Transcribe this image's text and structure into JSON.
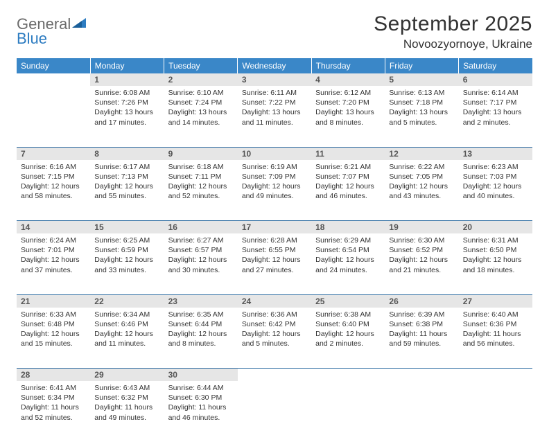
{
  "logo": {
    "word1": "General",
    "word2": "Blue"
  },
  "title": "September 2025",
  "location": "Novoozyornoye, Ukraine",
  "colors": {
    "header_bg": "#3a87c8",
    "header_text": "#ffffff",
    "daynum_bg": "#e6e6e6",
    "daynum_text": "#555555",
    "rule": "#2a6aa0",
    "logo_gray": "#6b6b6b",
    "logo_blue": "#2d7cc1",
    "body_text": "#333333"
  },
  "weekdays": [
    "Sunday",
    "Monday",
    "Tuesday",
    "Wednesday",
    "Thursday",
    "Friday",
    "Saturday"
  ],
  "weeks": [
    [
      null,
      {
        "n": "1",
        "sr": "Sunrise: 6:08 AM",
        "ss": "Sunset: 7:26 PM",
        "dl": "Daylight: 13 hours and 17 minutes."
      },
      {
        "n": "2",
        "sr": "Sunrise: 6:10 AM",
        "ss": "Sunset: 7:24 PM",
        "dl": "Daylight: 13 hours and 14 minutes."
      },
      {
        "n": "3",
        "sr": "Sunrise: 6:11 AM",
        "ss": "Sunset: 7:22 PM",
        "dl": "Daylight: 13 hours and 11 minutes."
      },
      {
        "n": "4",
        "sr": "Sunrise: 6:12 AM",
        "ss": "Sunset: 7:20 PM",
        "dl": "Daylight: 13 hours and 8 minutes."
      },
      {
        "n": "5",
        "sr": "Sunrise: 6:13 AM",
        "ss": "Sunset: 7:18 PM",
        "dl": "Daylight: 13 hours and 5 minutes."
      },
      {
        "n": "6",
        "sr": "Sunrise: 6:14 AM",
        "ss": "Sunset: 7:17 PM",
        "dl": "Daylight: 13 hours and 2 minutes."
      }
    ],
    [
      {
        "n": "7",
        "sr": "Sunrise: 6:16 AM",
        "ss": "Sunset: 7:15 PM",
        "dl": "Daylight: 12 hours and 58 minutes."
      },
      {
        "n": "8",
        "sr": "Sunrise: 6:17 AM",
        "ss": "Sunset: 7:13 PM",
        "dl": "Daylight: 12 hours and 55 minutes."
      },
      {
        "n": "9",
        "sr": "Sunrise: 6:18 AM",
        "ss": "Sunset: 7:11 PM",
        "dl": "Daylight: 12 hours and 52 minutes."
      },
      {
        "n": "10",
        "sr": "Sunrise: 6:19 AM",
        "ss": "Sunset: 7:09 PM",
        "dl": "Daylight: 12 hours and 49 minutes."
      },
      {
        "n": "11",
        "sr": "Sunrise: 6:21 AM",
        "ss": "Sunset: 7:07 PM",
        "dl": "Daylight: 12 hours and 46 minutes."
      },
      {
        "n": "12",
        "sr": "Sunrise: 6:22 AM",
        "ss": "Sunset: 7:05 PM",
        "dl": "Daylight: 12 hours and 43 minutes."
      },
      {
        "n": "13",
        "sr": "Sunrise: 6:23 AM",
        "ss": "Sunset: 7:03 PM",
        "dl": "Daylight: 12 hours and 40 minutes."
      }
    ],
    [
      {
        "n": "14",
        "sr": "Sunrise: 6:24 AM",
        "ss": "Sunset: 7:01 PM",
        "dl": "Daylight: 12 hours and 37 minutes."
      },
      {
        "n": "15",
        "sr": "Sunrise: 6:25 AM",
        "ss": "Sunset: 6:59 PM",
        "dl": "Daylight: 12 hours and 33 minutes."
      },
      {
        "n": "16",
        "sr": "Sunrise: 6:27 AM",
        "ss": "Sunset: 6:57 PM",
        "dl": "Daylight: 12 hours and 30 minutes."
      },
      {
        "n": "17",
        "sr": "Sunrise: 6:28 AM",
        "ss": "Sunset: 6:55 PM",
        "dl": "Daylight: 12 hours and 27 minutes."
      },
      {
        "n": "18",
        "sr": "Sunrise: 6:29 AM",
        "ss": "Sunset: 6:54 PM",
        "dl": "Daylight: 12 hours and 24 minutes."
      },
      {
        "n": "19",
        "sr": "Sunrise: 6:30 AM",
        "ss": "Sunset: 6:52 PM",
        "dl": "Daylight: 12 hours and 21 minutes."
      },
      {
        "n": "20",
        "sr": "Sunrise: 6:31 AM",
        "ss": "Sunset: 6:50 PM",
        "dl": "Daylight: 12 hours and 18 minutes."
      }
    ],
    [
      {
        "n": "21",
        "sr": "Sunrise: 6:33 AM",
        "ss": "Sunset: 6:48 PM",
        "dl": "Daylight: 12 hours and 15 minutes."
      },
      {
        "n": "22",
        "sr": "Sunrise: 6:34 AM",
        "ss": "Sunset: 6:46 PM",
        "dl": "Daylight: 12 hours and 11 minutes."
      },
      {
        "n": "23",
        "sr": "Sunrise: 6:35 AM",
        "ss": "Sunset: 6:44 PM",
        "dl": "Daylight: 12 hours and 8 minutes."
      },
      {
        "n": "24",
        "sr": "Sunrise: 6:36 AM",
        "ss": "Sunset: 6:42 PM",
        "dl": "Daylight: 12 hours and 5 minutes."
      },
      {
        "n": "25",
        "sr": "Sunrise: 6:38 AM",
        "ss": "Sunset: 6:40 PM",
        "dl": "Daylight: 12 hours and 2 minutes."
      },
      {
        "n": "26",
        "sr": "Sunrise: 6:39 AM",
        "ss": "Sunset: 6:38 PM",
        "dl": "Daylight: 11 hours and 59 minutes."
      },
      {
        "n": "27",
        "sr": "Sunrise: 6:40 AM",
        "ss": "Sunset: 6:36 PM",
        "dl": "Daylight: 11 hours and 56 minutes."
      }
    ],
    [
      {
        "n": "28",
        "sr": "Sunrise: 6:41 AM",
        "ss": "Sunset: 6:34 PM",
        "dl": "Daylight: 11 hours and 52 minutes."
      },
      {
        "n": "29",
        "sr": "Sunrise: 6:43 AM",
        "ss": "Sunset: 6:32 PM",
        "dl": "Daylight: 11 hours and 49 minutes."
      },
      {
        "n": "30",
        "sr": "Sunrise: 6:44 AM",
        "ss": "Sunset: 6:30 PM",
        "dl": "Daylight: 11 hours and 46 minutes."
      },
      null,
      null,
      null,
      null
    ]
  ]
}
